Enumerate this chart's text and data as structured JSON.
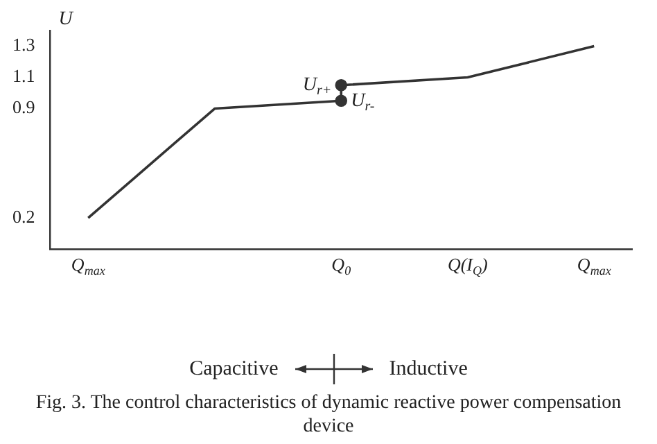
{
  "chart_data": {
    "type": "line",
    "title": "Fig. 3.   The control characteristics of dynamic reactive power compensation device",
    "ylabel": "U",
    "categories": [
      "Q$_{max}$",
      null,
      "Q$_{0}$",
      "Q(I$_{Q}$)",
      "Q$_{max}$"
    ],
    "series": [
      {
        "color": "#333333",
        "values": [
          0.2,
          0.9,
          0.95,
          null,
          null
        ]
      },
      {
        "color": "#333333",
        "values": [
          null,
          null,
          1.05,
          1.1,
          1.3
        ]
      },
      {
        "color": "#333333",
        "x": [
          "Q$_{0}$",
          "Q$_{0}$"
        ],
        "values": [
          0.95,
          1.05
        ],
        "marker": "circle"
      }
    ],
    "ylim": [
      0,
      1.4
    ],
    "yticks": [
      0.2,
      0.9,
      1.1,
      1.3
    ],
    "grid": false,
    "legend": false,
    "marker": "none",
    "line_style": "solid",
    "annotations": [
      {
        "text": "U$_{r-}$",
        "x": "Q$_{0}$",
        "y": 0.95
      },
      {
        "text": "U$_{r+}$",
        "x": "Q$_{0}$",
        "y": 1.05
      },
      "Capacitive",
      "Inductive"
    ]
  }
}
